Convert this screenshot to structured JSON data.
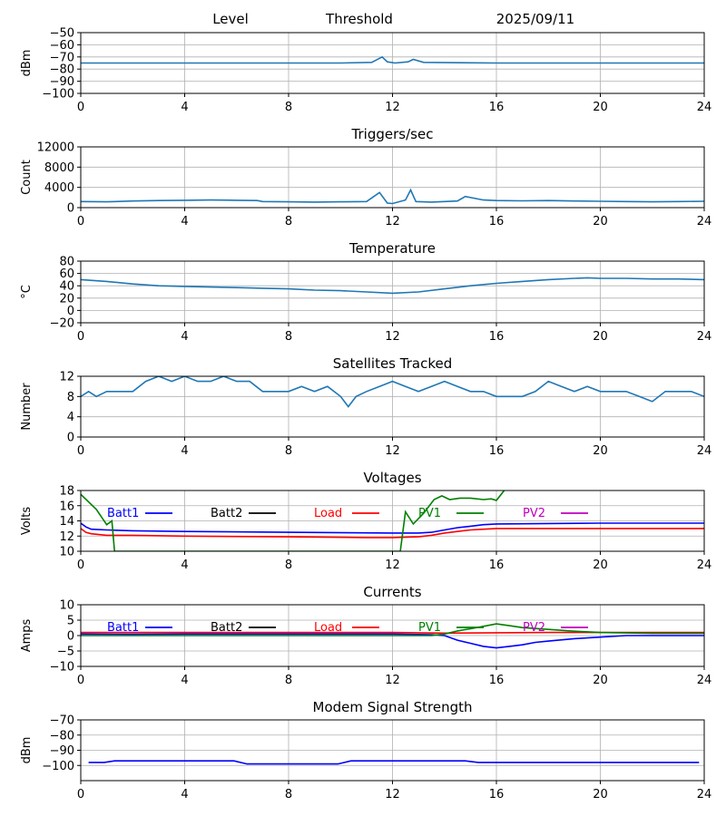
{
  "header": {
    "label1": "Level",
    "label2": "Threshold",
    "date": "2025/09/11"
  },
  "chart_data": [
    {
      "id": "level",
      "type": "line",
      "title": "",
      "ylabel": "dBm",
      "xlim": [
        0,
        24
      ],
      "ylim": [
        -100,
        -50
      ],
      "xticks": [
        0,
        4,
        8,
        12,
        16,
        20,
        24
      ],
      "yticks": [
        -100,
        -90,
        -80,
        -70,
        -60,
        -50
      ],
      "ytick_labels": [
        "−100",
        "−90",
        "−80",
        "−70",
        "−60",
        "−50"
      ],
      "grid": true,
      "series": [
        {
          "color": "#1f77b4",
          "x": [
            0,
            2,
            4,
            6,
            8,
            10,
            11.2,
            11.6,
            11.8,
            12.1,
            12.6,
            12.8,
            13.2,
            16,
            20,
            24
          ],
          "y": [
            -75,
            -75,
            -75,
            -75,
            -75,
            -75,
            -74.5,
            -70,
            -74,
            -75,
            -74,
            -72,
            -74.5,
            -75,
            -75,
            -75
          ]
        }
      ]
    },
    {
      "id": "triggers",
      "type": "line",
      "title": "Triggers/sec",
      "ylabel": "Count",
      "xlim": [
        0,
        24
      ],
      "ylim": [
        0,
        12000
      ],
      "xticks": [
        0,
        4,
        8,
        12,
        16,
        20,
        24
      ],
      "yticks": [
        0,
        4000,
        8000,
        12000
      ],
      "ytick_labels": [
        "0",
        "4000",
        "8000",
        "12000"
      ],
      "grid": true,
      "series": [
        {
          "color": "#1f77b4",
          "x": [
            0,
            1,
            2,
            3,
            4,
            5,
            6,
            6.8,
            7,
            8,
            9,
            10,
            11,
            11.5,
            11.8,
            12,
            12.5,
            12.7,
            12.9,
            13.5,
            14,
            14.5,
            14.8,
            15.5,
            16,
            17,
            18,
            19,
            20,
            21,
            22,
            23,
            24
          ],
          "y": [
            1200,
            1150,
            1300,
            1400,
            1450,
            1500,
            1450,
            1400,
            1200,
            1150,
            1100,
            1150,
            1200,
            3000,
            900,
            800,
            1500,
            3500,
            1200,
            1100,
            1200,
            1300,
            2200,
            1500,
            1400,
            1350,
            1400,
            1300,
            1250,
            1200,
            1150,
            1200,
            1250
          ]
        }
      ]
    },
    {
      "id": "temperature",
      "type": "line",
      "title": "Temperature",
      "ylabel": "°C",
      "xlim": [
        0,
        24
      ],
      "ylim": [
        -20,
        80
      ],
      "xticks": [
        0,
        4,
        8,
        12,
        16,
        20,
        24
      ],
      "yticks": [
        -20,
        0,
        20,
        40,
        60,
        80
      ],
      "ytick_labels": [
        "−20",
        "0",
        "20",
        "40",
        "60",
        "80"
      ],
      "grid": true,
      "series": [
        {
          "color": "#1f77b4",
          "x": [
            0,
            1,
            2,
            3,
            4,
            5,
            6,
            7,
            8,
            9,
            10,
            11,
            12,
            13,
            14,
            15,
            16,
            17,
            18,
            19,
            19.5,
            20,
            21,
            22,
            23,
            24
          ],
          "y": [
            50,
            47,
            43,
            40,
            39,
            38,
            37,
            36,
            35,
            33,
            32,
            30,
            28,
            30,
            35,
            40,
            44,
            47,
            50,
            52,
            53,
            52,
            52,
            51,
            51,
            50
          ]
        }
      ]
    },
    {
      "id": "satellites",
      "type": "line",
      "title": "Satellites Tracked",
      "ylabel": "Number",
      "xlim": [
        0,
        24
      ],
      "ylim": [
        0,
        12
      ],
      "xticks": [
        0,
        4,
        8,
        12,
        16,
        20,
        24
      ],
      "yticks": [
        0,
        4,
        8,
        12
      ],
      "ytick_labels": [
        "0",
        "4",
        "8",
        "12"
      ],
      "grid": true,
      "series": [
        {
          "color": "#1f77b4",
          "x": [
            0,
            0.3,
            0.6,
            1,
            1.5,
            2,
            2.5,
            3,
            3.5,
            4,
            4.5,
            5,
            5.5,
            6,
            6.5,
            7,
            7.5,
            8,
            8.5,
            9,
            9.5,
            10,
            10.3,
            10.6,
            11,
            11.5,
            12,
            12.5,
            13,
            13.5,
            14,
            14.5,
            15,
            15.5,
            16,
            16.5,
            17,
            17.5,
            18,
            18.5,
            19,
            19.5,
            20,
            20.5,
            21,
            21.5,
            22,
            22.5,
            23,
            23.5,
            24
          ],
          "y": [
            8,
            9,
            8,
            9,
            9,
            9,
            11,
            12,
            11,
            12,
            11,
            11,
            12,
            11,
            11,
            9,
            9,
            9,
            10,
            9,
            10,
            8,
            6,
            8,
            9,
            10,
            11,
            10,
            9,
            10,
            11,
            10,
            9,
            9,
            8,
            8,
            8,
            9,
            11,
            10,
            9,
            10,
            9,
            9,
            9,
            8,
            7,
            9,
            9,
            9,
            8
          ]
        }
      ]
    },
    {
      "id": "voltages",
      "type": "line",
      "title": "Voltages",
      "ylabel": "Volts",
      "xlim": [
        0,
        24
      ],
      "ylim": [
        10,
        18
      ],
      "xticks": [
        0,
        4,
        8,
        12,
        16,
        20,
        24
      ],
      "yticks": [
        10,
        12,
        14,
        16,
        18
      ],
      "ytick_labels": [
        "10",
        "12",
        "14",
        "16",
        "18"
      ],
      "grid": true,
      "legend": [
        "Batt1",
        "Batt2",
        "Load",
        "PV1",
        "PV2"
      ],
      "series": [
        {
          "name": "Batt1",
          "color": "#0000ff",
          "x": [
            0,
            0.2,
            0.4,
            1,
            2,
            4,
            8,
            12,
            13,
            13.5,
            14,
            14.5,
            15,
            15.5,
            16,
            20,
            24
          ],
          "y": [
            13.7,
            13.2,
            12.9,
            12.8,
            12.7,
            12.6,
            12.5,
            12.4,
            12.4,
            12.5,
            12.8,
            13.1,
            13.3,
            13.5,
            13.6,
            13.7,
            13.7
          ]
        },
        {
          "name": "Batt2",
          "color": "#000000",
          "x": [],
          "y": []
        },
        {
          "name": "Load",
          "color": "#ff0000",
          "x": [
            0,
            0.2,
            0.4,
            1,
            2,
            4,
            8,
            11,
            12,
            13,
            13.5,
            14,
            14.5,
            15,
            15.5,
            16,
            20,
            24
          ],
          "y": [
            13.0,
            12.5,
            12.3,
            12.1,
            12.1,
            12.0,
            11.9,
            11.8,
            11.8,
            11.9,
            12.1,
            12.4,
            12.6,
            12.8,
            12.9,
            13.0,
            13.0,
            13.0
          ]
        },
        {
          "name": "PV1",
          "color": "#008000",
          "x": [
            0,
            0.3,
            0.6,
            0.8,
            1.0,
            1.2,
            1.3,
            12.3,
            12.5,
            12.8,
            13.2,
            13.6,
            13.9,
            14.2,
            14.6,
            15,
            15.5,
            15.8,
            16,
            16.3
          ],
          "y": [
            17.5,
            16.5,
            15.5,
            14.5,
            13.5,
            14.0,
            10.0,
            10.0,
            15.2,
            13.6,
            15.0,
            16.8,
            17.3,
            16.8,
            17.0,
            17.0,
            16.8,
            16.9,
            16.7,
            18.0
          ]
        },
        {
          "name": "PV2",
          "color": "#bf00bf",
          "x": [],
          "y": []
        }
      ]
    },
    {
      "id": "currents",
      "type": "line",
      "title": "Currents",
      "ylabel": "Amps",
      "xlim": [
        0,
        24
      ],
      "ylim": [
        -10,
        10
      ],
      "xticks": [
        0,
        4,
        8,
        12,
        16,
        20,
        24
      ],
      "yticks": [
        -10,
        -5,
        0,
        5,
        10
      ],
      "ytick_labels": [
        "−10",
        "−5",
        "0",
        "5",
        "10"
      ],
      "grid": true,
      "legend": [
        "Batt1",
        "Batt2",
        "Load",
        "PV1",
        "PV2"
      ],
      "series": [
        {
          "name": "Batt1",
          "color": "#0000ff",
          "x": [
            0,
            2,
            4,
            8,
            12,
            13.5,
            14,
            14.5,
            15,
            15.5,
            16,
            16.5,
            17,
            17.5,
            18,
            19,
            20,
            21,
            22,
            23,
            24
          ],
          "y": [
            0.5,
            0.4,
            0.5,
            0.5,
            0.5,
            0.3,
            0,
            -1.5,
            -2.5,
            -3.5,
            -4,
            -3.5,
            -3,
            -2.2,
            -1.8,
            -1,
            -0.5,
            0,
            0,
            0,
            0
          ]
        },
        {
          "name": "Batt2",
          "color": "#000000",
          "x": [],
          "y": []
        },
        {
          "name": "Load",
          "color": "#ff0000",
          "x": [
            0,
            4,
            8,
            12,
            14,
            16,
            18,
            20,
            24
          ],
          "y": [
            1.0,
            1.0,
            1.0,
            1.0,
            0.8,
            0.9,
            1.0,
            1.0,
            1.0
          ]
        },
        {
          "name": "PV1",
          "color": "#008000",
          "x": [
            0,
            4,
            8,
            12,
            13.5,
            14,
            14.5,
            15,
            15.5,
            16,
            16.5,
            17,
            18,
            19,
            20,
            22,
            24
          ],
          "y": [
            0,
            0,
            0,
            0,
            0,
            0.5,
            1.5,
            2.2,
            3,
            3.8,
            3.2,
            2.6,
            2,
            1.4,
            1,
            0.7,
            0.7
          ]
        },
        {
          "name": "PV2",
          "color": "#bf00bf",
          "x": [],
          "y": []
        }
      ]
    },
    {
      "id": "modem",
      "type": "line",
      "title": "Modem Signal Strength",
      "ylabel": "dBm",
      "xlim": [
        0,
        24
      ],
      "ylim": [
        -110,
        -70
      ],
      "xticks": [
        0,
        4,
        8,
        12,
        16,
        20,
        24
      ],
      "yticks": [
        -100,
        -90,
        -80,
        -70
      ],
      "ytick_labels": [
        "−100",
        "−90",
        "−80",
        "−70"
      ],
      "grid": true,
      "series": [
        {
          "color": "#0000ff",
          "x": [
            0.3,
            0.9,
            1.3,
            5.9,
            6.4,
            9.9,
            10.4,
            14.8,
            15.3,
            23.8
          ],
          "y": [
            -98,
            -98,
            -97,
            -97,
            -99,
            -99,
            -97,
            -97,
            -98,
            -98
          ]
        }
      ]
    }
  ]
}
